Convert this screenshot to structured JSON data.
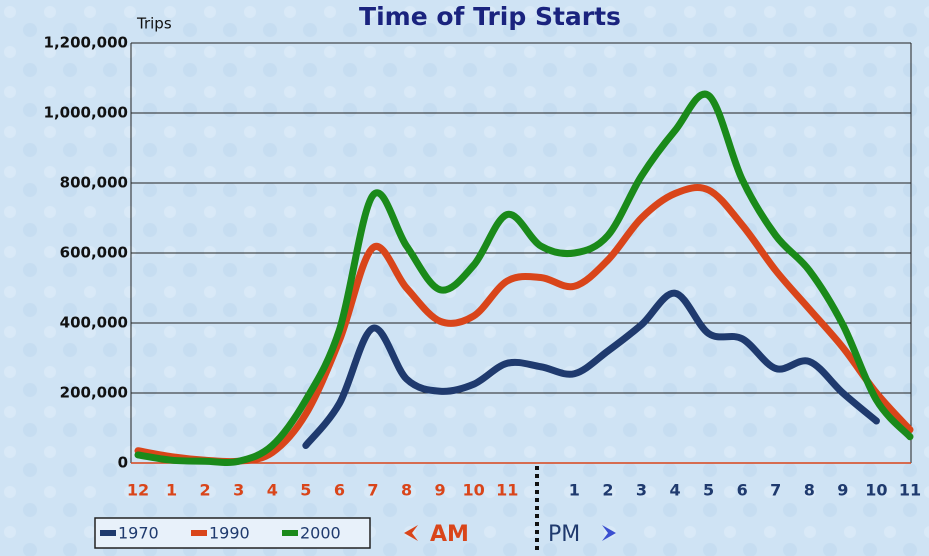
{
  "chart_data": {
    "type": "line",
    "title": "Time of Trip Starts",
    "y_label": "Trips",
    "annotations": [
      "AM",
      "PM"
    ],
    "categories": [
      "12",
      "1",
      "2",
      "3",
      "4",
      "5",
      "6",
      "7",
      "8",
      "9",
      "10",
      "11",
      null,
      "1",
      "2",
      "3",
      "4",
      "5",
      "6",
      "7",
      "8",
      "9",
      "10",
      "11"
    ],
    "series": [
      {
        "name": "1970",
        "color": "#1f3a6e",
        "values": [
          null,
          null,
          null,
          null,
          null,
          50000,
          170000,
          385000,
          240000,
          205000,
          225000,
          285000,
          275000,
          255000,
          320000,
          395000,
          485000,
          370000,
          355000,
          270000,
          290000,
          200000,
          120000,
          null
        ]
      },
      {
        "name": "1990",
        "color": "#d9451a",
        "values": [
          35000,
          18000,
          8000,
          5000,
          30000,
          140000,
          350000,
          615000,
          500000,
          405000,
          420000,
          520000,
          530000,
          505000,
          580000,
          700000,
          770000,
          780000,
          680000,
          550000,
          440000,
          330000,
          200000,
          95000
        ]
      },
      {
        "name": "2000",
        "color": "#1a8a1a",
        "values": [
          23000,
          8000,
          5000,
          5000,
          50000,
          180000,
          380000,
          765000,
          620000,
          495000,
          565000,
          710000,
          620000,
          600000,
          650000,
          820000,
          950000,
          1050000,
          810000,
          650000,
          550000,
          395000,
          180000,
          75000
        ]
      }
    ],
    "ylim": [
      0,
      1200000
    ],
    "yticks": [
      0,
      {
        "value": 200000,
        "label": "200,000"
      },
      {
        "value": 400000,
        "label": "400,000"
      },
      {
        "value": 600000,
        "label": "600,000"
      },
      {
        "value": 800000,
        "label": "800,000"
      },
      {
        "value": 1000000,
        "label": "1,000,000"
      },
      {
        "value": 1200000,
        "label": "1,200,000"
      }
    ],
    "grid": true,
    "legend": "bottom-left"
  }
}
